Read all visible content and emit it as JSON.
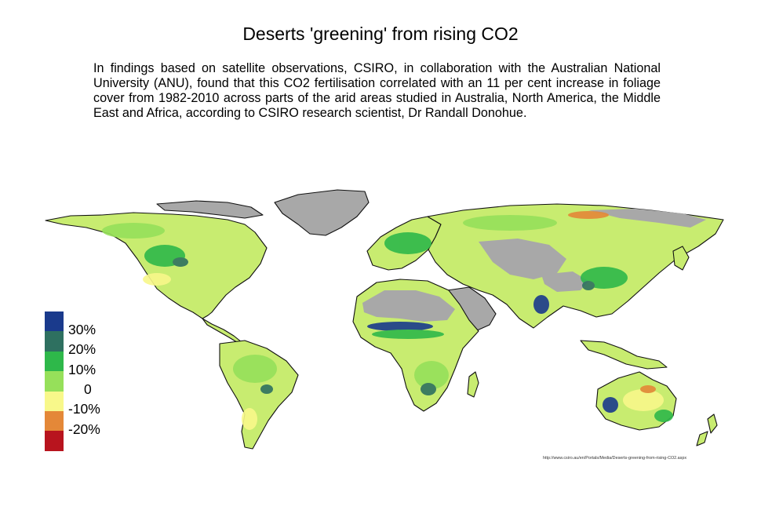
{
  "title": "Deserts 'greening' from rising CO2",
  "description": "In findings based on satellite observations, CSIRO, in collaboration with the Australian National University (ANU), found that this CO2 fertilisation correlated with an 11 per cent increase in foliage cover from 1982-2010 across parts of the arid areas studied in Australia, North America, the Middle East and Africa, according to CSIRO research scientist, Dr Randall Donohue.",
  "legend": {
    "swatches": [
      {
        "color": "#1a3a8c"
      },
      {
        "color": "#2e7060"
      },
      {
        "color": "#2eb84a"
      },
      {
        "color": "#96e05a"
      },
      {
        "color": "#f8f88a"
      },
      {
        "color": "#e48838"
      },
      {
        "color": "#b8141e"
      }
    ],
    "labels": [
      "30%",
      "20%",
      "10%",
      "0",
      "-10%",
      "-20%"
    ]
  },
  "source_url": "http://www.csiro.au/en/Portals/Media/Deserts-greening-from-rising-CO2.aspx",
  "colors": {
    "no_data": "#a8a8a8",
    "vegetation_base": "#c8ec70",
    "coastline": "#111111"
  }
}
